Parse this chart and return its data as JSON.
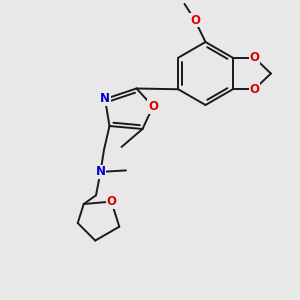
{
  "background_color": "#e8e8e8",
  "bond_color": "#1a1a1a",
  "O_color": "#dd0000",
  "N_color": "#0000cc",
  "lw": 1.4,
  "fs": 8.5,
  "fig_size": [
    3.0,
    3.0
  ],
  "dpi": 100,
  "xlim": [
    0,
    10
  ],
  "ylim": [
    0,
    10
  ]
}
